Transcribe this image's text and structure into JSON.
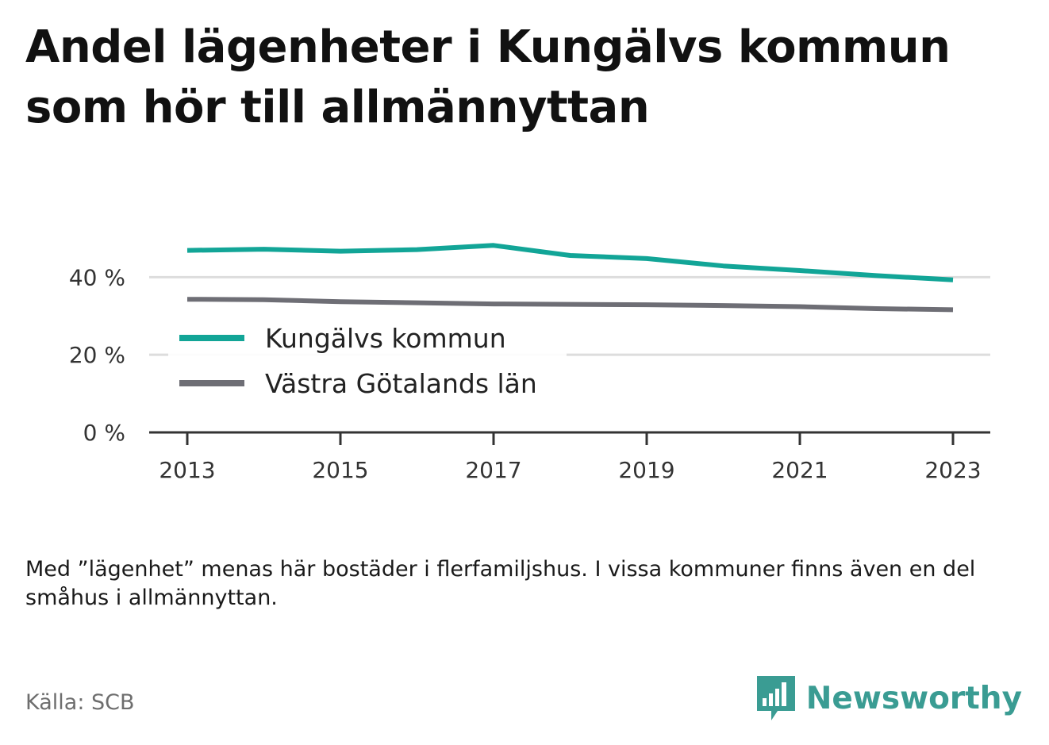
{
  "title": "Andel lägenheter i Kungälvs kommun som hör till allmännyttan",
  "note": "Med ”lägenhet” menas här bostäder i flerfamiljshus. I vissa kommuner finns även en del småhus i allmännyttan.",
  "source": "Källa: SCB",
  "brand": {
    "name": "Newsworthy",
    "icon": "bar-chart-speech-bubble-icon",
    "color": "#3a9c93"
  },
  "chart_data": {
    "type": "line",
    "x": [
      2013,
      2014,
      2015,
      2016,
      2017,
      2018,
      2019,
      2020,
      2021,
      2022,
      2023
    ],
    "series": [
      {
        "name": "Kungälvs kommun",
        "color": "#12a597",
        "values": [
          46.9,
          47.2,
          46.7,
          47.1,
          48.2,
          45.6,
          44.8,
          42.9,
          41.7,
          40.4,
          39.3
        ]
      },
      {
        "name": "Västra Götalands län",
        "color": "#6e6e75",
        "values": [
          34.3,
          34.2,
          33.7,
          33.4,
          33.1,
          33.0,
          32.9,
          32.7,
          32.4,
          31.9,
          31.6
        ]
      }
    ],
    "ylim": [
      0,
      55
    ],
    "y_ticks": [
      0,
      20,
      40
    ],
    "y_tick_labels": [
      "0 %",
      "20 %",
      "40 %"
    ],
    "x_ticks": [
      2013,
      2015,
      2017,
      2019,
      2021,
      2023
    ],
    "x_tick_labels": [
      "2013",
      "2015",
      "2017",
      "2019",
      "2021",
      "2023"
    ],
    "grid": true,
    "legend": "inside-bottom-left"
  }
}
